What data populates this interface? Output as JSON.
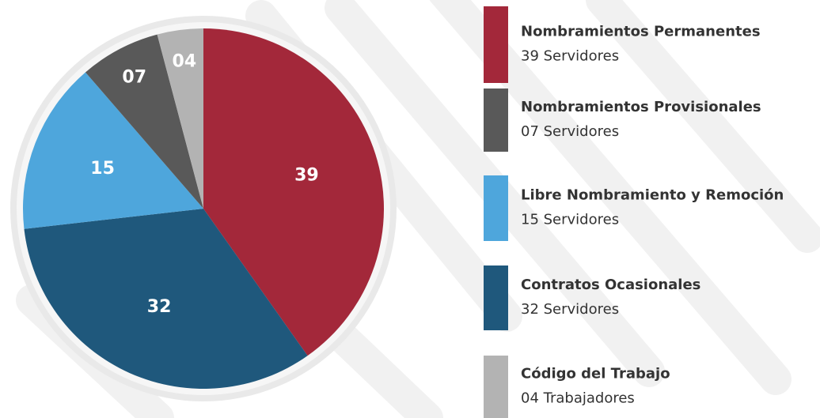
{
  "chart_data": {
    "type": "pie",
    "categories": [
      "Nombramientos Permanentes",
      "Nombramientos Provisionales",
      "Libre Nombramiento y Remoción",
      "Contratos Ocasionales",
      "Código del Trabajo"
    ],
    "values": [
      39,
      7,
      15,
      32,
      4
    ],
    "value_labels": [
      "39",
      "07",
      "15",
      "32",
      "04"
    ],
    "legend_details": [
      "39 Servidores",
      "07 Servidores",
      "15 Servidores",
      "32 Servidores",
      "04 Trabajadores"
    ],
    "colors": [
      "#a3283a",
      "#595959",
      "#4ea6dc",
      "#1f587c",
      "#b3b3b3"
    ],
    "pie_order": [
      0,
      3,
      2,
      1,
      4
    ]
  }
}
